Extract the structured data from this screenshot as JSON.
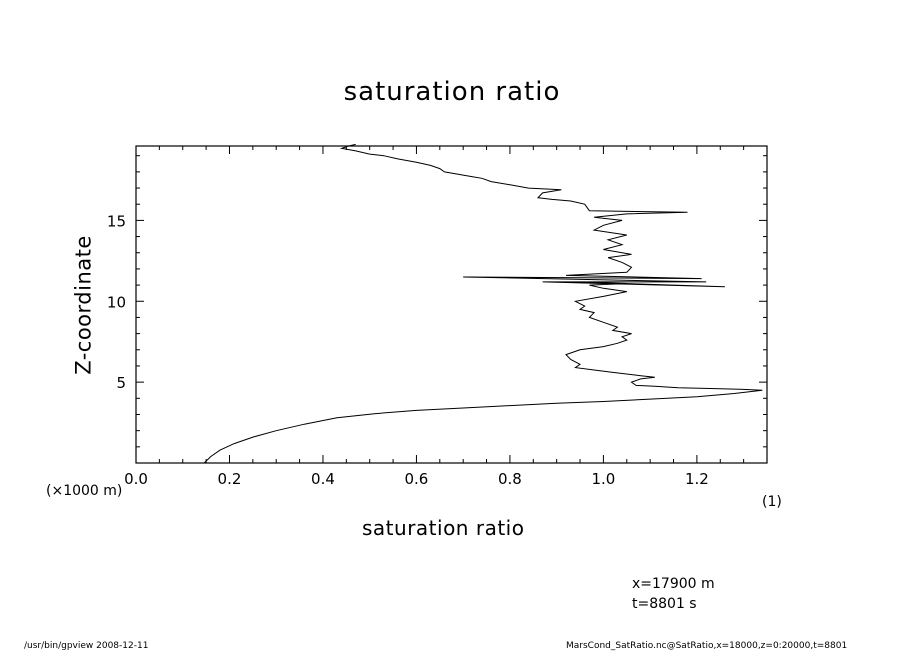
{
  "chart_data": {
    "type": "line",
    "title": "saturation ratio",
    "xlabel": "saturation ratio",
    "ylabel": "Z-coordinate",
    "x_unit": "(1)",
    "y_unit": "(×1000 m)",
    "xlim": [
      0.0,
      1.35
    ],
    "ylim": [
      0,
      19.6
    ],
    "xticks": [
      0.0,
      0.2,
      0.4,
      0.6,
      0.8,
      1.0,
      1.2
    ],
    "xtick_labels": [
      "0.0",
      "0.2",
      "0.4",
      "0.6",
      "0.8",
      "1.0",
      "1.2"
    ],
    "yticks": [
      5,
      10,
      15
    ],
    "ytick_labels": [
      "5",
      "10",
      "15"
    ],
    "grid": false,
    "series": [
      {
        "x": [
          0.146,
          0.16,
          0.18,
          0.21,
          0.25,
          0.3,
          0.36,
          0.43,
          0.51,
          0.6,
          0.7,
          0.8,
          0.9,
          1.0,
          1.1,
          1.2,
          1.28,
          1.34,
          1.3,
          1.24,
          1.16,
          1.11,
          1.07,
          1.06,
          1.08,
          1.11,
          1.08,
          1.02,
          0.98,
          0.94,
          0.95,
          0.93,
          0.92,
          0.95,
          1.0,
          1.03,
          1.05,
          1.04,
          1.06,
          1.02,
          1.03,
          1.0,
          0.97,
          0.98,
          0.95,
          0.96,
          0.94,
          1.0,
          1.05,
          1.0,
          0.97,
          1.05,
          0.94,
          1.26,
          0.87,
          1.22,
          0.7,
          1.21,
          0.92,
          1.05,
          1.06,
          1.04,
          1.01,
          1.06,
          1.0,
          1.04,
          1.01,
          1.05,
          0.98,
          1.0,
          1.04,
          0.98,
          1.05,
          1.18,
          0.97,
          0.96,
          0.93,
          0.89,
          0.86,
          0.87,
          0.91,
          0.84,
          0.8,
          0.76,
          0.74,
          0.72,
          0.7,
          0.66,
          0.65,
          0.63,
          0.6,
          0.56,
          0.53,
          0.5,
          0.47,
          0.44,
          0.455,
          0.47
        ],
        "y": [
          0.0,
          0.4,
          0.8,
          1.2,
          1.6,
          2.0,
          2.4,
          2.8,
          3.05,
          3.25,
          3.4,
          3.55,
          3.7,
          3.8,
          3.95,
          4.1,
          4.3,
          4.5,
          4.55,
          4.6,
          4.65,
          4.75,
          4.8,
          5.0,
          5.2,
          5.3,
          5.4,
          5.6,
          5.75,
          5.9,
          6.1,
          6.4,
          6.7,
          7.0,
          7.2,
          7.4,
          7.6,
          7.8,
          8.0,
          8.2,
          8.4,
          8.7,
          9.0,
          9.3,
          9.5,
          9.7,
          10.0,
          10.3,
          10.6,
          10.8,
          11.0,
          11.1,
          11.2,
          10.9,
          11.2,
          11.2,
          11.5,
          11.4,
          11.6,
          11.8,
          12.1,
          12.4,
          12.7,
          12.9,
          13.2,
          13.5,
          13.8,
          14.1,
          14.4,
          14.7,
          15.0,
          15.2,
          15.4,
          15.5,
          15.6,
          16.0,
          16.2,
          16.3,
          16.4,
          16.7,
          16.9,
          17.0,
          17.2,
          17.4,
          17.6,
          17.7,
          17.8,
          18.0,
          18.2,
          18.4,
          18.6,
          18.8,
          19.0,
          19.1,
          19.3,
          19.45,
          19.6,
          19.7
        ]
      }
    ]
  },
  "info": {
    "x_position": "x=17900 m",
    "time": "t=8801 s"
  },
  "footer": {
    "left": "/usr/bin/gpview   2008-12-11",
    "right": "MarsCond_SatRatio.nc@SatRatio,x=18000,z=0:20000,t=8801"
  }
}
